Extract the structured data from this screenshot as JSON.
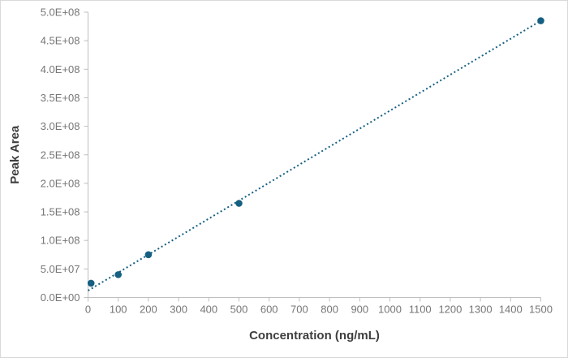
{
  "chart_data": {
    "type": "scatter",
    "title": "",
    "xlabel": "Concentration (ng/mL)",
    "ylabel": "Peak Area",
    "points": [
      {
        "x": 10,
        "y": 25000000
      },
      {
        "x": 100,
        "y": 40000000
      },
      {
        "x": 200,
        "y": 75000000
      },
      {
        "x": 500,
        "y": 165000000
      },
      {
        "x": 1500,
        "y": 485000000
      }
    ],
    "trendline": {
      "type": "linear",
      "style": "dotted",
      "x_start": 0,
      "y_start": 12000000,
      "x_end": 1500,
      "y_end": 485000000
    },
    "xlim": [
      0,
      1500
    ],
    "ylim": [
      0,
      500000000
    ],
    "x_ticks": [
      0,
      100,
      200,
      300,
      400,
      500,
      600,
      700,
      800,
      900,
      1000,
      1100,
      1200,
      1300,
      1400,
      1500
    ],
    "y_ticks": [
      {
        "value": 0,
        "label": "0.0E+00"
      },
      {
        "value": 50000000,
        "label": "5.0E+07"
      },
      {
        "value": 100000000,
        "label": "1.0E+08"
      },
      {
        "value": 150000000,
        "label": "1.5E+08"
      },
      {
        "value": 200000000,
        "label": "2.0E+08"
      },
      {
        "value": 250000000,
        "label": "2.5E+08"
      },
      {
        "value": 300000000,
        "label": "3.0E+08"
      },
      {
        "value": 350000000,
        "label": "3.5E+08"
      },
      {
        "value": 400000000,
        "label": "4.0E+08"
      },
      {
        "value": 450000000,
        "label": "4.5E+08"
      },
      {
        "value": 500000000,
        "label": "5.0E+08"
      }
    ],
    "grid": false,
    "legend": "none",
    "colors": {
      "marker": "#156082",
      "trendline": "#156082",
      "axis_line": "#bfbfbf",
      "tick_label": "#767676",
      "axis_title": "#3e3e3e",
      "chart_border": "#d9d9d9",
      "background": "#ffffff"
    }
  }
}
